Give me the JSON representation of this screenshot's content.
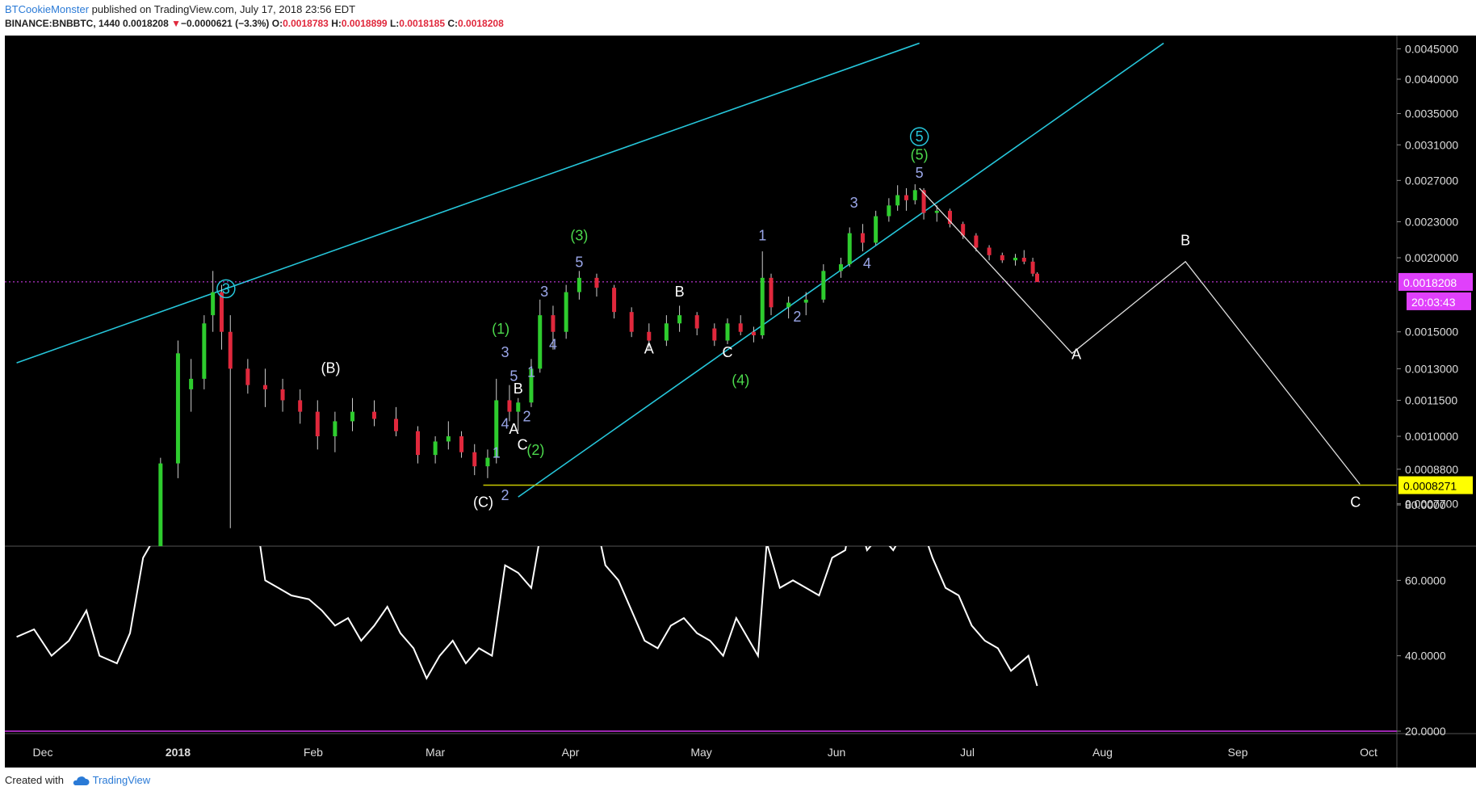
{
  "header": {
    "author": "BTCookieMonster",
    "published": "published on TradingView.com, July 17, 2018 23:56 EDT",
    "symbol": "BINANCE:BNBBTC, 1440",
    "last": "0.0018208",
    "change_arrow": "▼",
    "change": "−0.0000621 (−3.3%)",
    "o_label": "O:",
    "o_value": "0.0018783",
    "h_label": "H:",
    "h_value": "0.0018899",
    "l_label": "L:",
    "l_value": "0.0018185",
    "c_label": "C:",
    "c_value": "0.0018208"
  },
  "footer": {
    "created_with": "Created with",
    "brand": "TradingView",
    "brand_icon": "cloud-icon"
  },
  "colors": {
    "bg": "#000000",
    "up": "#2ecc2e",
    "down": "#e0283c",
    "channel": "#26c6da",
    "rsi": "#ffffff",
    "rsi_upper": "#26c6da",
    "rsi_lower": "#9c27b0",
    "current_price": "#e040fb",
    "support": "#c8c800",
    "wave_white": "#ffffff",
    "wave_green": "#4cd94c",
    "wave_blue": "#9aa6e8"
  },
  "chart_data": {
    "type": "candlestick",
    "price_axis_ticks": [
      "0.0045000",
      "0.0040000",
      "0.0035000",
      "0.0031000",
      "0.0027000",
      "0.0023000",
      "0.0020000",
      "0.0015000",
      "0.0013000",
      "0.0011500",
      "0.0010000",
      "0.0008800",
      "0.0007700"
    ],
    "time_axis_ticks": [
      "Dec",
      "2018",
      "Feb",
      "Mar",
      "Apr",
      "May",
      "Jun",
      "Jul",
      "Aug",
      "Sep",
      "Oct"
    ],
    "log_scale": true,
    "current_price": "0.0018208",
    "countdown": "20:03:43",
    "support_level": "0.0008271",
    "ohlc_series": [
      [
        "2017-12-28",
        0.00062,
        0.00092,
        0.0006,
        0.0009
      ],
      [
        "2018-01-01",
        0.0009,
        0.00145,
        0.00085,
        0.00138
      ],
      [
        "2018-01-04",
        0.0012,
        0.00135,
        0.0011,
        0.00125
      ],
      [
        "2018-01-07",
        0.00125,
        0.0016,
        0.0012,
        0.00155
      ],
      [
        "2018-01-09",
        0.0016,
        0.0019,
        0.0015,
        0.00175
      ],
      [
        "2018-01-11",
        0.00175,
        0.0018,
        0.0014,
        0.0015
      ],
      [
        "2018-01-13",
        0.0015,
        0.0016,
        0.0007,
        0.0013
      ],
      [
        "2018-01-17",
        0.0013,
        0.00135,
        0.00118,
        0.00122
      ],
      [
        "2018-01-21",
        0.00122,
        0.0013,
        0.00112,
        0.0012
      ],
      [
        "2018-01-25",
        0.0012,
        0.00125,
        0.0011,
        0.00115
      ],
      [
        "2018-01-29",
        0.00115,
        0.0012,
        0.00105,
        0.0011
      ],
      [
        "2018-02-02",
        0.0011,
        0.00115,
        0.00095,
        0.001
      ],
      [
        "2018-02-06",
        0.001,
        0.0011,
        0.00094,
        0.00106
      ],
      [
        "2018-02-10",
        0.00106,
        0.00116,
        0.00102,
        0.0011
      ],
      [
        "2018-02-15",
        0.0011,
        0.00115,
        0.00104,
        0.00107
      ],
      [
        "2018-02-20",
        0.00107,
        0.00112,
        0.001,
        0.00102
      ],
      [
        "2018-02-25",
        0.00102,
        0.00104,
        0.0009,
        0.00093
      ],
      [
        "2018-03-01",
        0.00093,
        0.001,
        0.0009,
        0.00098
      ],
      [
        "2018-03-04",
        0.00098,
        0.00106,
        0.00095,
        0.001
      ],
      [
        "2018-03-07",
        0.001,
        0.00102,
        0.00092,
        0.00094
      ],
      [
        "2018-03-10",
        0.00094,
        0.00097,
        0.00086,
        0.00089
      ],
      [
        "2018-03-13",
        0.00089,
        0.00095,
        0.00085,
        0.00092
      ],
      [
        "2018-03-15",
        0.00092,
        0.00125,
        0.0009,
        0.00115
      ],
      [
        "2018-03-18",
        0.00115,
        0.00122,
        0.00106,
        0.0011
      ],
      [
        "2018-03-20",
        0.0011,
        0.00116,
        0.00102,
        0.00114
      ],
      [
        "2018-03-23",
        0.00114,
        0.00135,
        0.00112,
        0.0013
      ],
      [
        "2018-03-25",
        0.0013,
        0.0017,
        0.00128,
        0.0016
      ],
      [
        "2018-03-28",
        0.0016,
        0.00166,
        0.0014,
        0.0015
      ],
      [
        "2018-03-31",
        0.0015,
        0.0018,
        0.00146,
        0.00175
      ],
      [
        "2018-04-03",
        0.00175,
        0.0019,
        0.0017,
        0.00185
      ],
      [
        "2018-04-07",
        0.00185,
        0.00188,
        0.00172,
        0.00178
      ],
      [
        "2018-04-11",
        0.00178,
        0.0018,
        0.00158,
        0.00162
      ],
      [
        "2018-04-15",
        0.00162,
        0.00165,
        0.00147,
        0.0015
      ],
      [
        "2018-04-19",
        0.0015,
        0.00155,
        0.0014,
        0.00145
      ],
      [
        "2018-04-23",
        0.00145,
        0.0016,
        0.00142,
        0.00155
      ],
      [
        "2018-04-26",
        0.00155,
        0.00166,
        0.0015,
        0.0016
      ],
      [
        "2018-04-30",
        0.0016,
        0.00162,
        0.00148,
        0.00152
      ],
      [
        "2018-05-04",
        0.00152,
        0.00155,
        0.00142,
        0.00145
      ],
      [
        "2018-05-07",
        0.00145,
        0.00158,
        0.00143,
        0.00155
      ],
      [
        "2018-05-10",
        0.00155,
        0.0016,
        0.00148,
        0.0015
      ],
      [
        "2018-05-13",
        0.0015,
        0.00153,
        0.00144,
        0.00148
      ],
      [
        "2018-05-15",
        0.00148,
        0.00205,
        0.00146,
        0.00185
      ],
      [
        "2018-05-17",
        0.00185,
        0.00188,
        0.0016,
        0.00165
      ],
      [
        "2018-05-21",
        0.00165,
        0.00172,
        0.00158,
        0.00168
      ],
      [
        "2018-05-25",
        0.00168,
        0.00175,
        0.0016,
        0.0017
      ],
      [
        "2018-05-29",
        0.0017,
        0.00195,
        0.00168,
        0.0019
      ],
      [
        "2018-06-02",
        0.0019,
        0.002,
        0.00185,
        0.00195
      ],
      [
        "2018-06-04",
        0.00195,
        0.00225,
        0.00193,
        0.0022
      ],
      [
        "2018-06-07",
        0.0022,
        0.00228,
        0.00205,
        0.00212
      ],
      [
        "2018-06-10",
        0.00212,
        0.0024,
        0.0021,
        0.00235
      ],
      [
        "2018-06-13",
        0.00235,
        0.00252,
        0.0023,
        0.00245
      ],
      [
        "2018-06-15",
        0.00245,
        0.00265,
        0.0024,
        0.00255
      ],
      [
        "2018-06-17",
        0.00255,
        0.00262,
        0.0024,
        0.0025
      ],
      [
        "2018-06-19",
        0.0025,
        0.00266,
        0.00246,
        0.0026
      ],
      [
        "2018-06-21",
        0.0026,
        0.00262,
        0.00232,
        0.00238
      ],
      [
        "2018-06-24",
        0.00238,
        0.00245,
        0.0023,
        0.0024
      ],
      [
        "2018-06-27",
        0.0024,
        0.00242,
        0.00225,
        0.00228
      ],
      [
        "2018-06-30",
        0.00228,
        0.0023,
        0.00215,
        0.00218
      ],
      [
        "2018-07-03",
        0.00218,
        0.0022,
        0.00205,
        0.00208
      ],
      [
        "2018-07-06",
        0.00208,
        0.0021,
        0.00198,
        0.00202
      ],
      [
        "2018-07-09",
        0.00202,
        0.00204,
        0.00196,
        0.00198
      ],
      [
        "2018-07-12",
        0.00198,
        0.00203,
        0.00194,
        0.002
      ],
      [
        "2018-07-14",
        0.002,
        0.00206,
        0.00195,
        0.00197
      ],
      [
        "2018-07-16",
        0.00197,
        0.002,
        0.00186,
        0.00188
      ],
      [
        "2018-07-17",
        0.00188,
        0.00189,
        0.00182,
        0.00182
      ]
    ],
    "wave_labels": [
      {
        "text": "3",
        "date": "2018-01-12",
        "price": 0.00174,
        "color": "channel",
        "circled": true
      },
      {
        "text": "(B)",
        "date": "2018-02-05",
        "price": 0.00128,
        "color": "wave_white"
      },
      {
        "text": "(C)",
        "date": "2018-03-12",
        "price": 0.00076,
        "color": "wave_white"
      },
      {
        "text": "1",
        "date": "2018-03-15",
        "price": 0.00092,
        "color": "wave_blue"
      },
      {
        "text": "2",
        "date": "2018-03-17",
        "price": 0.00078,
        "color": "wave_blue"
      },
      {
        "text": "3",
        "date": "2018-03-17",
        "price": 0.00136,
        "color": "wave_blue"
      },
      {
        "text": "(1)",
        "date": "2018-03-16",
        "price": 0.00149,
        "color": "wave_green"
      },
      {
        "text": "4",
        "date": "2018-03-17",
        "price": 0.00103,
        "color": "wave_blue"
      },
      {
        "text": "5",
        "date": "2018-03-19",
        "price": 0.00124,
        "color": "wave_blue"
      },
      {
        "text": "A",
        "date": "2018-03-19",
        "price": 0.00101,
        "color": "wave_white"
      },
      {
        "text": "B",
        "date": "2018-03-20",
        "price": 0.00118,
        "color": "wave_white"
      },
      {
        "text": "C",
        "date": "2018-03-21",
        "price": 0.00095,
        "color": "wave_white"
      },
      {
        "text": "2",
        "date": "2018-03-22",
        "price": 0.00106,
        "color": "wave_blue"
      },
      {
        "text": "(2)",
        "date": "2018-03-24",
        "price": 0.00093,
        "color": "wave_green"
      },
      {
        "text": "1",
        "date": "2018-03-23",
        "price": 0.00126,
        "color": "wave_blue"
      },
      {
        "text": "3",
        "date": "2018-03-26",
        "price": 0.00172,
        "color": "wave_blue"
      },
      {
        "text": "4",
        "date": "2018-03-28",
        "price": 0.0014,
        "color": "wave_blue"
      },
      {
        "text": "5",
        "date": "2018-04-03",
        "price": 0.00193,
        "color": "wave_blue"
      },
      {
        "text": "(3)",
        "date": "2018-04-03",
        "price": 0.00214,
        "color": "wave_green"
      },
      {
        "text": "A",
        "date": "2018-04-19",
        "price": 0.00138,
        "color": "wave_white"
      },
      {
        "text": "B",
        "date": "2018-04-26",
        "price": 0.00172,
        "color": "wave_white"
      },
      {
        "text": "C",
        "date": "2018-05-07",
        "price": 0.00136,
        "color": "wave_white"
      },
      {
        "text": "(4)",
        "date": "2018-05-10",
        "price": 0.00122,
        "color": "wave_green"
      },
      {
        "text": "1",
        "date": "2018-05-15",
        "price": 0.00214,
        "color": "wave_blue"
      },
      {
        "text": "2",
        "date": "2018-05-23",
        "price": 0.00156,
        "color": "wave_blue"
      },
      {
        "text": "3",
        "date": "2018-06-05",
        "price": 0.00243,
        "color": "wave_blue"
      },
      {
        "text": "4",
        "date": "2018-06-08",
        "price": 0.00192,
        "color": "wave_blue"
      },
      {
        "text": "5",
        "date": "2018-06-20",
        "price": 0.00273,
        "color": "wave_blue"
      },
      {
        "text": "(5)",
        "date": "2018-06-20",
        "price": 0.00293,
        "color": "wave_green"
      },
      {
        "text": "5",
        "date": "2018-06-20",
        "price": 0.00314,
        "color": "channel",
        "circled": true
      },
      {
        "text": "A",
        "date": "2018-07-26",
        "price": 0.00135,
        "color": "wave_white"
      },
      {
        "text": "B",
        "date": "2018-08-20",
        "price": 0.0021,
        "color": "wave_white"
      },
      {
        "text": "C",
        "date": "2018-09-28",
        "price": 0.00076,
        "color": "wave_white"
      }
    ],
    "projection_path": [
      [
        "2018-06-20",
        0.00262
      ],
      [
        "2018-07-25",
        0.00138
      ],
      [
        "2018-08-20",
        0.00197
      ],
      [
        "2018-09-29",
        0.00083
      ]
    ],
    "trend_lines": [
      {
        "from": [
          "2017-11-25",
          0.00133
        ],
        "to": [
          "2018-06-20",
          0.0046
        ]
      },
      {
        "from": [
          "2018-03-20",
          0.00079
        ],
        "to": [
          "2018-08-15",
          0.0046
        ]
      }
    ],
    "oscillator": {
      "axis_ticks": [
        "80.0000",
        "60.0000",
        "40.0000",
        "20.0000"
      ],
      "range": [
        15,
        95
      ],
      "upper_level": 80,
      "lower_level": 20,
      "values": [
        [
          "2017-11-25",
          45
        ],
        [
          "2017-11-29",
          47
        ],
        [
          "2017-12-03",
          40
        ],
        [
          "2017-12-07",
          44
        ],
        [
          "2017-12-11",
          52
        ],
        [
          "2017-12-14",
          40
        ],
        [
          "2017-12-18",
          38
        ],
        [
          "2017-12-21",
          46
        ],
        [
          "2017-12-24",
          66
        ],
        [
          "2017-12-27",
          72
        ],
        [
          "2017-12-30",
          70
        ],
        [
          "2018-01-02",
          78
        ],
        [
          "2018-01-05",
          88
        ],
        [
          "2018-01-07",
          80
        ],
        [
          "2018-01-09",
          82
        ],
        [
          "2018-01-11",
          76
        ],
        [
          "2018-01-13",
          92
        ],
        [
          "2018-01-15",
          78
        ],
        [
          "2018-01-17",
          84
        ],
        [
          "2018-01-19",
          76
        ],
        [
          "2018-01-21",
          60
        ],
        [
          "2018-01-24",
          58
        ],
        [
          "2018-01-27",
          56
        ],
        [
          "2018-01-31",
          55
        ],
        [
          "2018-02-03",
          52
        ],
        [
          "2018-02-06",
          48
        ],
        [
          "2018-02-09",
          50
        ],
        [
          "2018-02-12",
          44
        ],
        [
          "2018-02-15",
          48
        ],
        [
          "2018-02-18",
          53
        ],
        [
          "2018-02-21",
          46
        ],
        [
          "2018-02-24",
          42
        ],
        [
          "2018-02-27",
          34
        ],
        [
          "2018-03-02",
          40
        ],
        [
          "2018-03-05",
          44
        ],
        [
          "2018-03-08",
          38
        ],
        [
          "2018-03-11",
          42
        ],
        [
          "2018-03-14",
          40
        ],
        [
          "2018-03-17",
          64
        ],
        [
          "2018-03-20",
          62
        ],
        [
          "2018-03-23",
          58
        ],
        [
          "2018-03-26",
          78
        ],
        [
          "2018-03-29",
          72
        ],
        [
          "2018-04-02",
          80
        ],
        [
          "2018-04-06",
          80
        ],
        [
          "2018-04-09",
          64
        ],
        [
          "2018-04-12",
          60
        ],
        [
          "2018-04-15",
          52
        ],
        [
          "2018-04-18",
          44
        ],
        [
          "2018-04-21",
          42
        ],
        [
          "2018-04-24",
          48
        ],
        [
          "2018-04-27",
          50
        ],
        [
          "2018-04-30",
          46
        ],
        [
          "2018-05-03",
          44
        ],
        [
          "2018-05-06",
          40
        ],
        [
          "2018-05-09",
          50
        ],
        [
          "2018-05-12",
          44
        ],
        [
          "2018-05-14",
          40
        ],
        [
          "2018-05-16",
          70
        ],
        [
          "2018-05-19",
          58
        ],
        [
          "2018-05-22",
          60
        ],
        [
          "2018-05-25",
          58
        ],
        [
          "2018-05-28",
          56
        ],
        [
          "2018-05-31",
          66
        ],
        [
          "2018-06-03",
          68
        ],
        [
          "2018-06-05",
          80
        ],
        [
          "2018-06-08",
          68
        ],
        [
          "2018-06-11",
          72
        ],
        [
          "2018-06-14",
          68
        ],
        [
          "2018-06-17",
          74
        ],
        [
          "2018-06-20",
          76
        ],
        [
          "2018-06-23",
          66
        ],
        [
          "2018-06-26",
          58
        ],
        [
          "2018-06-29",
          56
        ],
        [
          "2018-07-02",
          48
        ],
        [
          "2018-07-05",
          44
        ],
        [
          "2018-07-08",
          42
        ],
        [
          "2018-07-11",
          36
        ],
        [
          "2018-07-13",
          38
        ],
        [
          "2018-07-15",
          40
        ],
        [
          "2018-07-17",
          32
        ]
      ]
    }
  }
}
